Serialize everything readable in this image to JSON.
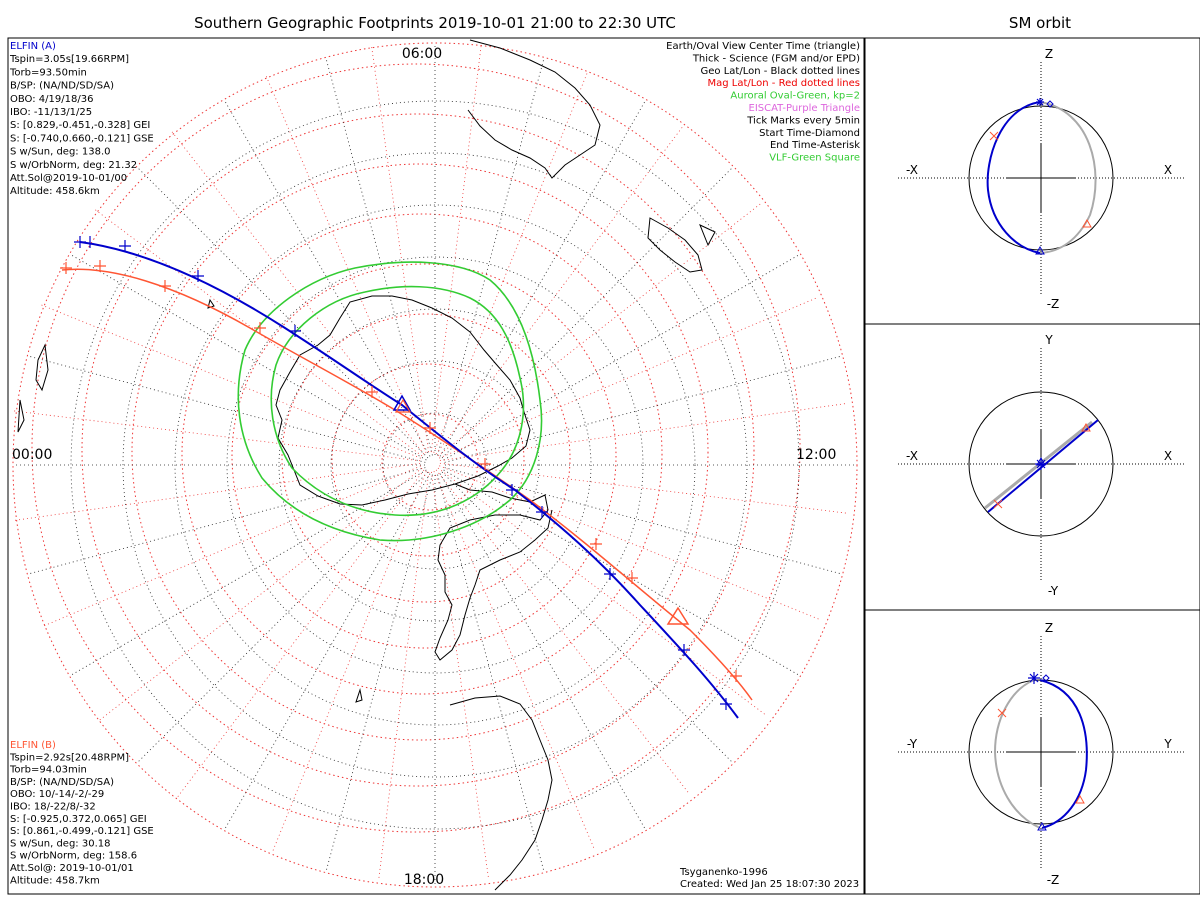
{
  "title": "Southern Geographic Footprints 2019-10-01 21:00 to 22:30 UTC",
  "orbit_title": "SM orbit",
  "colors": {
    "elfin_a": "#0000cc",
    "elfin_b": "#ff5533",
    "oval": "#33cc33",
    "grid": "#ee3333",
    "gray": "#aaaaaa",
    "eiscat": "#dd66dd"
  },
  "time_labels": {
    "top": "06:00",
    "left": "00:00",
    "right": "12:00",
    "bottom": "18:00"
  },
  "elfin_a": {
    "lines": [
      "ELFIN (A)",
      "Tspin=3.05s[19.66RPM]",
      "Torb=93.50min",
      "B/SP: (NA/ND/SD/SA)",
      "OBO: 4/19/18/36",
      "IBO: -11/13/1/25",
      "S: [0.829,-0.451,-0.328] GEI",
      "S: [-0.740,0.660,-0.121] GSE",
      "S w/Sun, deg: 138.0",
      "S w/OrbNorm, deg: 21.32",
      "Att.Sol@2019-10-01/00",
      "Altitude: 458.6km"
    ]
  },
  "elfin_b": {
    "lines": [
      "ELFIN (B)",
      "Tspin=2.92s[20.48RPM]",
      "Torb=94.03min",
      "B/SP: (NA/ND/SD/SA)",
      "OBO: 10/-14/-2/-29",
      "IBO: 18/-22/8/-32",
      "S: [-0.925,0.372,0.065] GEI",
      "S: [0.861,-0.499,-0.121] GSE",
      "S w/Sun, deg: 30.18",
      "S w/OrbNorm, deg: 158.6",
      "Att.Sol@: 2019-10-01/01",
      "Altitude: 458.7km"
    ]
  },
  "legend": [
    {
      "text": "Earth/Oval View Center Time (triangle)",
      "color": "#000000"
    },
    {
      "text": "Thick - Science (FGM and/or EPD)",
      "color": "#000000"
    },
    {
      "text": "Geo Lat/Lon - Black dotted lines",
      "color": "#000000"
    },
    {
      "text": "Mag Lat/Lon - Red dotted lines",
      "color": "#ee0000"
    },
    {
      "text": "Auroral Oval-Green, kp=2",
      "color": "#33cc33"
    },
    {
      "text": "EISCAT-Purple Triangle",
      "color": "#dd66dd"
    },
    {
      "text": "Tick Marks every 5min",
      "color": "#000000"
    },
    {
      "text": "Start Time-Diamond",
      "color": "#000000"
    },
    {
      "text": "End Time-Asterisk",
      "color": "#000000"
    },
    {
      "text": "VLF-Green Square",
      "color": "#33cc33"
    }
  ],
  "footer": {
    "model": "Tsyganenko-1996",
    "created": "Created: Wed Jan 25 18:07:30 2023"
  },
  "orbit_panels": [
    {
      "top": "Z",
      "bottom": "-Z",
      "left": "-X",
      "right": "X"
    },
    {
      "top": "Y",
      "bottom": "-Y",
      "left": "-X",
      "right": "X"
    },
    {
      "top": "Z",
      "bottom": "-Z",
      "left": "-Y",
      "right": "Y"
    }
  ]
}
